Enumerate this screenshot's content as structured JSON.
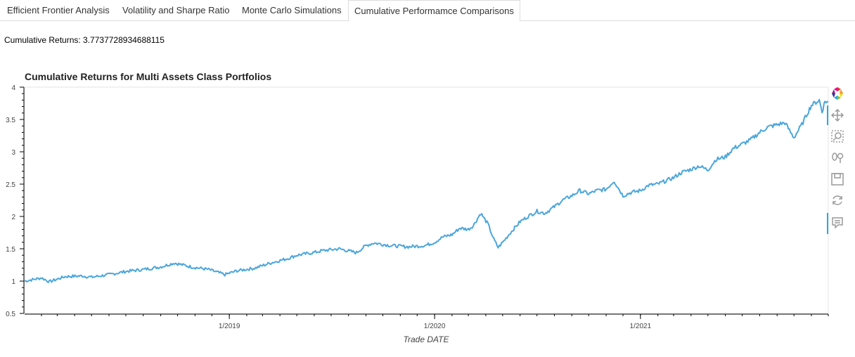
{
  "tabs": [
    {
      "label": "Efficient Frontier Analysis"
    },
    {
      "label": "Volatility and Sharpe Ratio"
    },
    {
      "label": "Monte Carlo Simulations"
    },
    {
      "label": "Cumulative Performamce Comparisons"
    }
  ],
  "active_tab": 3,
  "cumulative_returns_text": "Cumulative Returns: 3.7737728934688115",
  "colors": {
    "line": "#4ba6dc",
    "accent": "#26aae1"
  },
  "toolbar": {
    "tools": [
      {
        "icon": "bokeh-logo-icon"
      },
      {
        "icon": "pan-icon"
      },
      {
        "icon": "box-zoom-icon"
      },
      {
        "icon": "wheel-zoom-icon"
      },
      {
        "icon": "save-icon"
      },
      {
        "icon": "reset-icon"
      },
      {
        "icon": "hover-icon"
      }
    ]
  },
  "chart_data": {
    "type": "line",
    "title": "Cumulative Returns for Multi Assets Class Portfolios",
    "xlabel": "Trade DATE",
    "ylabel": "",
    "x_ticks": [
      "1/2019",
      "1/2020",
      "1/2021"
    ],
    "y_ticks": [
      "0.5",
      "1",
      "1.5",
      "2",
      "2.5",
      "3",
      "3.5",
      "4"
    ],
    "ylim": [
      0.5,
      4
    ],
    "xlim": [
      "2018-01-02",
      "2021-12-01"
    ],
    "grid": false,
    "series": [
      {
        "points": [
          [
            "2018-01-02",
            1.0
          ],
          [
            "2018-02-01",
            1.05
          ],
          [
            "2018-02-15",
            0.99
          ],
          [
            "2018-03-15",
            1.07
          ],
          [
            "2018-04-15",
            1.08
          ],
          [
            "2018-05-01",
            1.06
          ],
          [
            "2018-06-01",
            1.1
          ],
          [
            "2018-07-01",
            1.15
          ],
          [
            "2018-08-01",
            1.18
          ],
          [
            "2018-09-01",
            1.22
          ],
          [
            "2018-09-25",
            1.28
          ],
          [
            "2018-10-25",
            1.22
          ],
          [
            "2018-11-25",
            1.18
          ],
          [
            "2018-12-24",
            1.1
          ],
          [
            "2019-01-15",
            1.16
          ],
          [
            "2019-02-15",
            1.2
          ],
          [
            "2019-03-15",
            1.28
          ],
          [
            "2019-04-15",
            1.35
          ],
          [
            "2019-05-01",
            1.4
          ],
          [
            "2019-05-30",
            1.44
          ],
          [
            "2019-06-15",
            1.47
          ],
          [
            "2019-07-15",
            1.5
          ],
          [
            "2019-08-15",
            1.44
          ],
          [
            "2019-09-01",
            1.55
          ],
          [
            "2019-09-15",
            1.59
          ],
          [
            "2019-10-15",
            1.55
          ],
          [
            "2019-11-15",
            1.53
          ],
          [
            "2019-12-15",
            1.55
          ],
          [
            "2020-01-01",
            1.6
          ],
          [
            "2020-01-15",
            1.68
          ],
          [
            "2020-02-01",
            1.72
          ],
          [
            "2020-02-15",
            1.82
          ],
          [
            "2020-03-01",
            1.8
          ],
          [
            "2020-03-10",
            1.86
          ],
          [
            "2020-03-23",
            2.05
          ],
          [
            "2020-04-05",
            1.88
          ],
          [
            "2020-04-15",
            1.65
          ],
          [
            "2020-04-23",
            1.52
          ],
          [
            "2020-05-01",
            1.6
          ],
          [
            "2020-05-15",
            1.75
          ],
          [
            "2020-06-01",
            1.92
          ],
          [
            "2020-06-15",
            2.0
          ],
          [
            "2020-07-01",
            2.08
          ],
          [
            "2020-07-15",
            2.05
          ],
          [
            "2020-08-01",
            2.15
          ],
          [
            "2020-08-15",
            2.25
          ],
          [
            "2020-09-01",
            2.32
          ],
          [
            "2020-09-15",
            2.4
          ],
          [
            "2020-10-01",
            2.35
          ],
          [
            "2020-10-15",
            2.4
          ],
          [
            "2020-11-01",
            2.42
          ],
          [
            "2020-11-15",
            2.55
          ],
          [
            "2020-12-01",
            2.32
          ],
          [
            "2020-12-15",
            2.37
          ],
          [
            "2021-01-01",
            2.4
          ],
          [
            "2021-01-15",
            2.48
          ],
          [
            "2021-02-01",
            2.5
          ],
          [
            "2021-02-15",
            2.55
          ],
          [
            "2021-03-01",
            2.6
          ],
          [
            "2021-03-15",
            2.68
          ],
          [
            "2021-04-01",
            2.73
          ],
          [
            "2021-04-15",
            2.78
          ],
          [
            "2021-05-01",
            2.72
          ],
          [
            "2021-05-15",
            2.88
          ],
          [
            "2021-06-01",
            2.92
          ],
          [
            "2021-06-15",
            3.05
          ],
          [
            "2021-07-01",
            3.12
          ],
          [
            "2021-07-15",
            3.18
          ],
          [
            "2021-08-01",
            3.3
          ],
          [
            "2021-08-15",
            3.38
          ],
          [
            "2021-09-01",
            3.42
          ],
          [
            "2021-09-15",
            3.45
          ],
          [
            "2021-09-25",
            3.3
          ],
          [
            "2021-10-01",
            3.22
          ],
          [
            "2021-10-15",
            3.42
          ],
          [
            "2021-10-25",
            3.6
          ],
          [
            "2021-11-01",
            3.72
          ],
          [
            "2021-11-15",
            3.8
          ],
          [
            "2021-11-20",
            3.62
          ],
          [
            "2021-11-25",
            3.78
          ],
          [
            "2021-12-01",
            3.77
          ]
        ]
      }
    ]
  }
}
